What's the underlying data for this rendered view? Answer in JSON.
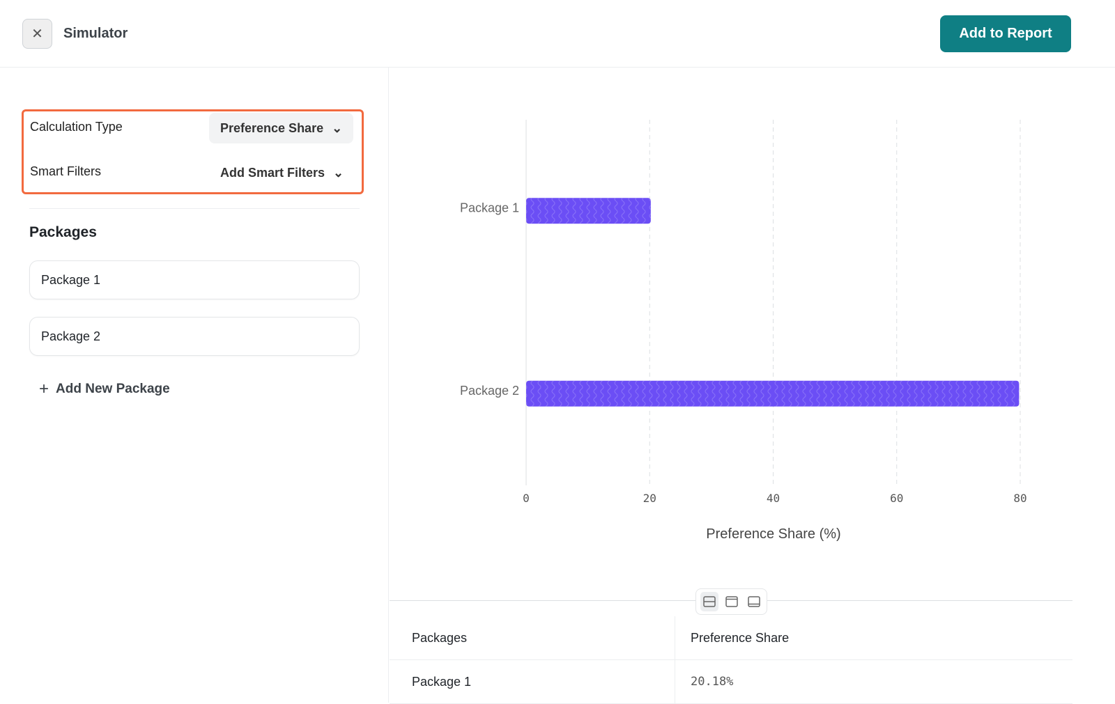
{
  "header": {
    "title": "Simulator",
    "add_to_report": "Add to Report",
    "close_icon": "close-icon"
  },
  "filters": {
    "calculation_type_label": "Calculation Type",
    "calculation_type_value": "Preference Share",
    "smart_filters_label": "Smart Filters",
    "smart_filters_value": "Add Smart Filters",
    "highlight_color": "#f26a3f"
  },
  "packages": {
    "title": "Packages",
    "items": [
      {
        "label": "Package 1"
      },
      {
        "label": "Package 2"
      }
    ],
    "add_label": "Add New Package"
  },
  "chart_data": {
    "type": "bar",
    "orientation": "horizontal",
    "categories": [
      "Package 1",
      "Package 2"
    ],
    "values": [
      20.18,
      79.82
    ],
    "xlabel": "Preference Share (%)",
    "ylabel": "",
    "xlim": [
      0,
      80
    ],
    "xticks": [
      "0",
      "20",
      "40",
      "60",
      "80"
    ],
    "grid": true,
    "bar_color": "#6b4ef5",
    "bar_pattern": "wavy"
  },
  "view_toggle": {
    "options": [
      "split-view-icon",
      "top-panel-icon",
      "bottom-panel-icon"
    ],
    "selected": 0
  },
  "table": {
    "headers": [
      "Packages",
      "Preference Share"
    ],
    "rows": [
      [
        "Package 1",
        "20.18%"
      ]
    ]
  }
}
